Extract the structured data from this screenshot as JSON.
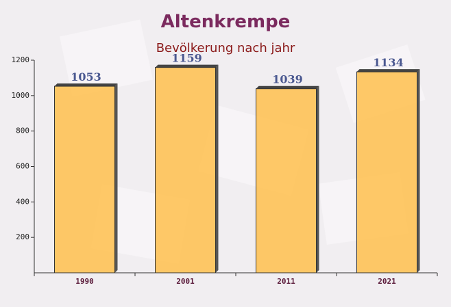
{
  "chart_data": {
    "type": "bar",
    "title": "Altenkrempe",
    "subtitle": "Bevölkerung nach jahr",
    "categories": [
      "1990",
      "2001",
      "2011",
      "2021"
    ],
    "values": [
      1053,
      1159,
      1039,
      1134
    ],
    "color": "#ffc04d",
    "ylim": [
      0,
      1200
    ],
    "yticks": [
      200,
      400,
      600,
      800,
      1000,
      1200
    ]
  }
}
